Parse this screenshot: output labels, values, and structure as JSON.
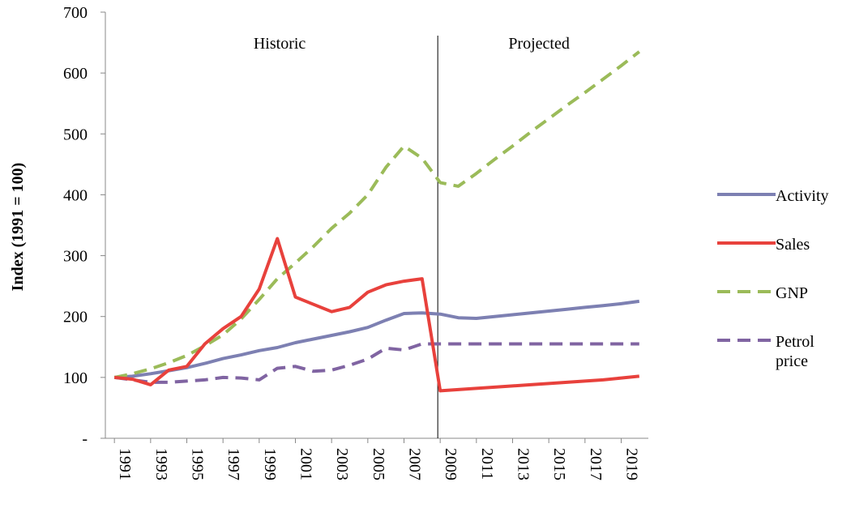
{
  "chart_data": {
    "type": "line",
    "y_label": "Index (1991 = 100)",
    "x": [
      1991,
      1992,
      1993,
      1994,
      1995,
      1996,
      1997,
      1998,
      1999,
      2000,
      2001,
      2002,
      2003,
      2004,
      2005,
      2006,
      2007,
      2008,
      2009,
      2010,
      2011,
      2012,
      2013,
      2014,
      2015,
      2016,
      2017,
      2018,
      2019,
      2020
    ],
    "xlim": [
      1990.5,
      2020.5
    ],
    "xticks": [
      1991,
      1993,
      1995,
      1997,
      1999,
      2001,
      2003,
      2005,
      2007,
      2009,
      2011,
      2013,
      2015,
      2017,
      2019
    ],
    "ylim": [
      0,
      700
    ],
    "yticks": [
      {
        "value": 0,
        "label": "-"
      },
      100,
      200,
      300,
      400,
      500,
      600,
      700
    ],
    "divider": 2009,
    "annotations": [
      "Historic",
      "Projected"
    ],
    "series": [
      {
        "name": "Activity",
        "color": "#7d80b2",
        "dash": false,
        "values": [
          100,
          102,
          106,
          111,
          116,
          123,
          131,
          137,
          144,
          149,
          157,
          163,
          169,
          175,
          182,
          194,
          205,
          206,
          204,
          198,
          197,
          200,
          203,
          206,
          209,
          212,
          215,
          218,
          221,
          225
        ]
      },
      {
        "name": "Sales",
        "color": "#e8413c",
        "dash": false,
        "values": [
          100,
          97,
          88,
          112,
          118,
          155,
          180,
          200,
          245,
          328,
          232,
          220,
          208,
          215,
          240,
          252,
          258,
          262,
          78,
          80,
          82,
          84,
          86,
          88,
          90,
          92,
          94,
          96,
          99,
          102
        ]
      },
      {
        "name": "GNP",
        "color": "#9bbb59",
        "dash": true,
        "values": [
          100,
          106,
          114,
          124,
          136,
          152,
          170,
          196,
          228,
          262,
          288,
          315,
          345,
          370,
          400,
          445,
          480,
          460,
          420,
          414,
          435,
          458,
          480,
          503,
          525,
          547,
          568,
          590,
          612,
          635
        ]
      },
      {
        "name": "Petrol price",
        "color": "#8064a2",
        "dash": true,
        "values": [
          100,
          96,
          92,
          92,
          94,
          96,
          100,
          99,
          96,
          115,
          118,
          110,
          112,
          120,
          130,
          148,
          145,
          155,
          155,
          155,
          155,
          155,
          155,
          155,
          155,
          155,
          155,
          155,
          155,
          155
        ]
      }
    ]
  }
}
